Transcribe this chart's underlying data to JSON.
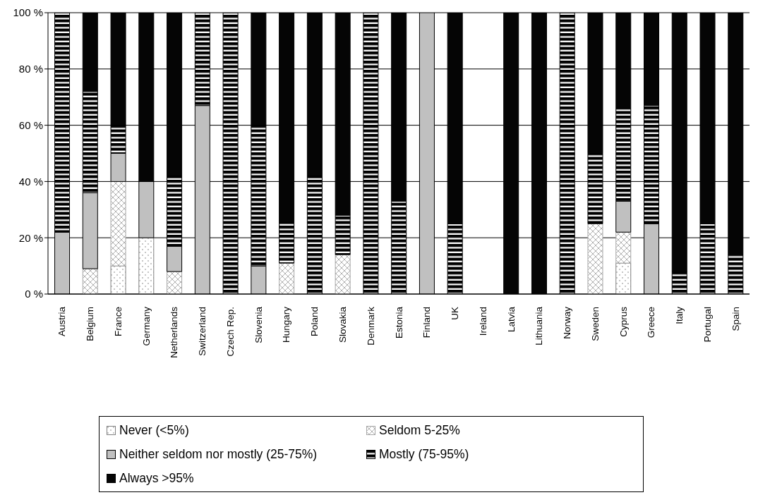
{
  "chart_data": {
    "type": "bar",
    "stacked": true,
    "categories": [
      "Austria",
      "Belgium",
      "France",
      "Germany",
      "Netherlands",
      "Switzerland",
      "Czech Rep.",
      "Slovenia",
      "Hungary",
      "Poland",
      "Slovakia",
      "Denmark",
      "Estonia",
      "Finland",
      "UK",
      "Ireland",
      "Latvia",
      "Lithuania",
      "Norway",
      "Sweden",
      "Cyprus",
      "Greece",
      "Italy",
      "Portugal",
      "Spain"
    ],
    "series": [
      {
        "name": "Never (<5%)",
        "color": "#808080",
        "values": [
          null,
          null,
          10,
          20,
          null,
          null,
          null,
          null,
          null,
          null,
          null,
          null,
          null,
          null,
          null,
          null,
          null,
          null,
          null,
          null,
          11,
          null,
          null,
          null,
          null
        ]
      },
      {
        "name": "Seldom 5-25%",
        "color": "#a6a6a6",
        "values": [
          null,
          9,
          30,
          null,
          8,
          null,
          null,
          null,
          11,
          null,
          14,
          null,
          null,
          null,
          null,
          null,
          null,
          null,
          null,
          25,
          11,
          null,
          null,
          null,
          null
        ]
      },
      {
        "name": "Neither seldom nor mostly (25-75%)",
        "color": "#c0c0c0",
        "values": [
          22,
          27,
          10,
          20,
          9,
          67,
          null,
          10,
          null,
          null,
          null,
          null,
          null,
          100,
          null,
          null,
          null,
          null,
          null,
          null,
          11,
          25,
          null,
          null,
          null
        ]
      },
      {
        "name": "Mostly (75-95%)",
        "color": "#000000",
        "values": [
          78,
          36,
          10,
          null,
          25,
          33,
          100,
          50,
          15,
          42,
          14,
          100,
          33,
          null,
          25,
          null,
          null,
          null,
          100,
          25,
          33,
          42,
          8,
          25,
          14
        ]
      },
      {
        "name": "Always >95%",
        "color": "#050505",
        "values": [
          null,
          28,
          40,
          60,
          58,
          null,
          null,
          40,
          74,
          58,
          72,
          null,
          67,
          null,
          75,
          null,
          100,
          100,
          null,
          50,
          34,
          33,
          92,
          75,
          86
        ]
      }
    ],
    "ylim": [
      0,
      100
    ],
    "yticks": [
      {
        "value": 0,
        "label": "0 %"
      },
      {
        "value": 20,
        "label": "20 %"
      },
      {
        "value": 40,
        "label": "40 %"
      },
      {
        "value": 60,
        "label": "60 %"
      },
      {
        "value": 80,
        "label": "80 %"
      },
      {
        "value": 100,
        "label": "100 %"
      }
    ],
    "grid": "y",
    "legend": "bottom"
  }
}
